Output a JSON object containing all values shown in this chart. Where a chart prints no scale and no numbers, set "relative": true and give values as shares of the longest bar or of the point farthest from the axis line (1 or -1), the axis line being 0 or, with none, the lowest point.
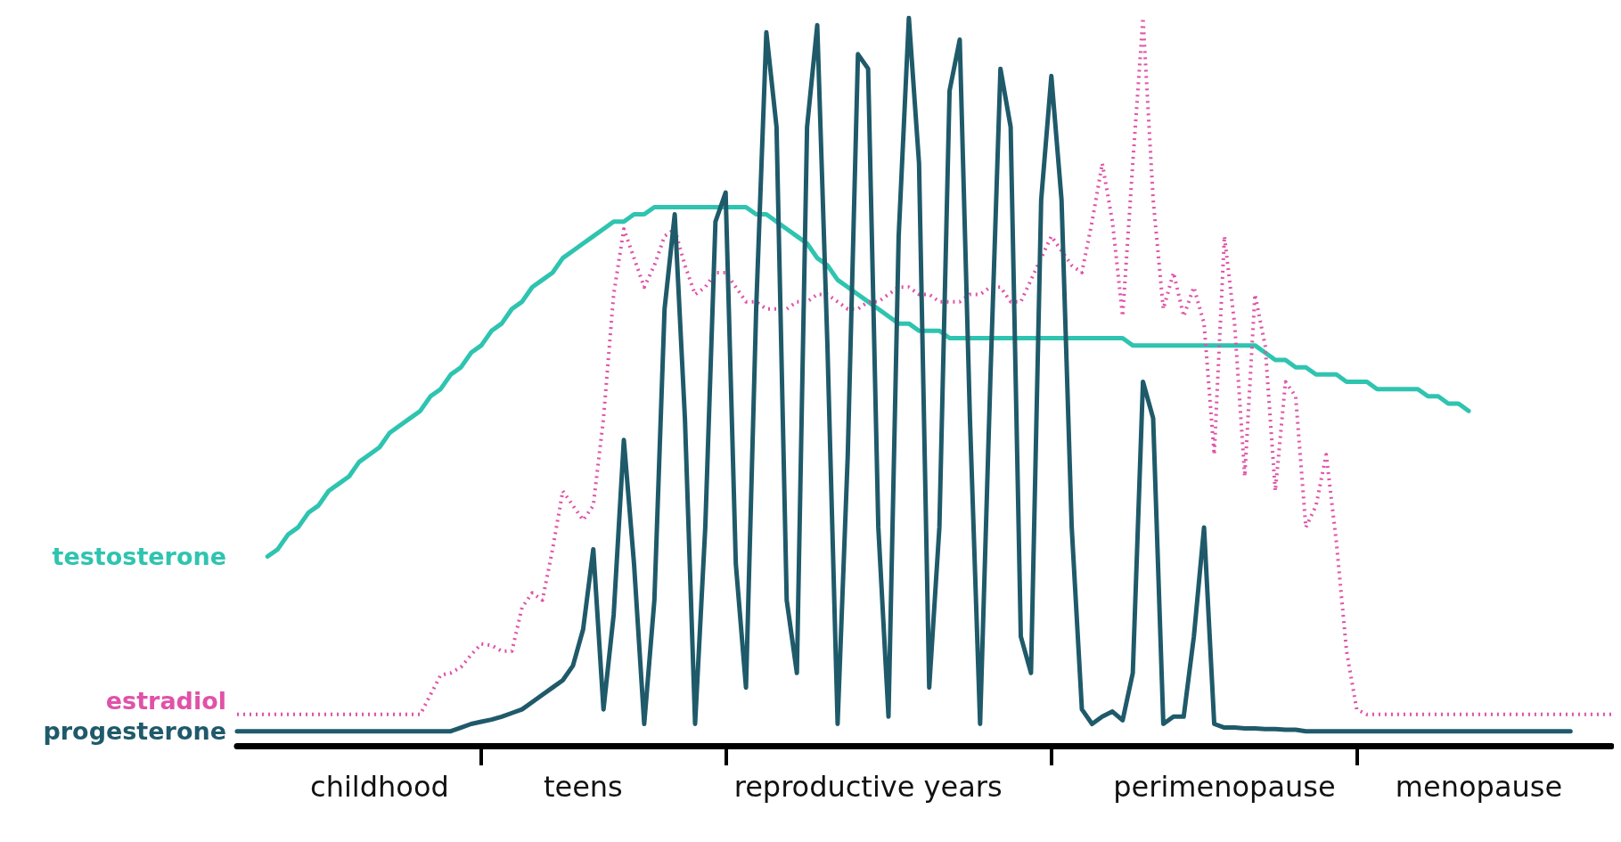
{
  "chart_data": {
    "type": "line",
    "relative": true,
    "categories": [
      null,
      null,
      null,
      null,
      null,
      null,
      null,
      null,
      null,
      null,
      null,
      null,
      null,
      null,
      "childhood",
      null,
      null,
      null,
      null,
      null,
      null,
      null,
      null,
      null,
      null,
      null,
      null,
      null,
      null,
      null,
      null,
      null,
      null,
      null,
      "teens",
      null,
      null,
      null,
      null,
      null,
      null,
      null,
      null,
      null,
      null,
      null,
      null,
      null,
      null,
      null,
      null,
      null,
      null,
      null,
      null,
      null,
      null,
      null,
      null,
      null,
      null,
      null,
      "reproductive years",
      null,
      null,
      null,
      null,
      null,
      null,
      null,
      null,
      null,
      null,
      null,
      null,
      null,
      null,
      null,
      null,
      null,
      null,
      null,
      null,
      null,
      null,
      null,
      null,
      null,
      null,
      null,
      null,
      null,
      null,
      null,
      null,
      null,
      null,
      "perimenopause",
      null,
      null,
      null,
      null,
      null,
      null,
      null,
      null,
      null,
      null,
      null,
      null,
      null,
      null,
      null,
      null,
      null,
      null,
      null,
      null,
      null,
      null,
      null,
      null,
      "menopause",
      null,
      null,
      null,
      null,
      null,
      null,
      null,
      null,
      null,
      null,
      null,
      null,
      null
    ],
    "marker": "none",
    "series": [
      {
        "name": "testosterone",
        "color": "#2ec4b0",
        "line_style": "solid",
        "values": [
          null,
          null,
          null,
          0.26,
          0.27,
          0.29,
          0.3,
          0.32,
          0.33,
          0.35,
          0.36,
          0.37,
          0.39,
          0.4,
          0.41,
          0.43,
          0.44,
          0.45,
          0.46,
          0.48,
          0.49,
          0.51,
          0.52,
          0.54,
          0.55,
          0.57,
          0.58,
          0.6,
          0.61,
          0.63,
          0.64,
          0.65,
          0.67,
          0.68,
          0.69,
          0.7,
          0.71,
          0.72,
          0.72,
          0.73,
          0.73,
          0.74,
          0.74,
          0.74,
          0.74,
          0.74,
          0.74,
          0.74,
          0.74,
          0.74,
          0.74,
          0.73,
          0.73,
          0.72,
          0.71,
          0.7,
          0.69,
          0.67,
          0.66,
          0.64,
          0.63,
          0.62,
          0.61,
          0.6,
          0.59,
          0.58,
          0.58,
          0.57,
          0.57,
          0.57,
          0.56,
          0.56,
          0.56,
          0.56,
          0.56,
          0.56,
          0.56,
          0.56,
          0.56,
          0.56,
          0.56,
          0.56,
          0.56,
          0.56,
          0.56,
          0.56,
          0.56,
          0.56,
          0.55,
          0.55,
          0.55,
          0.55,
          0.55,
          0.55,
          0.55,
          0.55,
          0.55,
          0.55,
          0.55,
          0.55,
          0.55,
          0.54,
          0.53,
          0.53,
          0.52,
          0.52,
          0.51,
          0.51,
          0.51,
          0.5,
          0.5,
          0.5,
          0.49,
          0.49,
          0.49,
          0.49,
          0.49,
          0.48,
          0.48,
          0.47,
          0.47,
          0.46,
          null,
          null,
          null,
          null,
          null,
          null,
          null,
          null,
          null,
          null,
          null,
          null,
          null,
          null
        ]
      },
      {
        "name": "estradiol",
        "color": "#e052a8",
        "line_style": "dotted",
        "values": [
          0.043,
          0.043,
          0.043,
          0.043,
          0.043,
          0.043,
          0.043,
          0.043,
          0.043,
          0.043,
          0.043,
          0.043,
          0.043,
          0.043,
          0.043,
          0.043,
          0.043,
          0.043,
          0.043,
          0.07,
          0.097,
          0.1,
          0.108,
          0.125,
          0.14,
          0.138,
          0.13,
          0.13,
          0.19,
          0.21,
          0.2,
          0.27,
          0.35,
          0.33,
          0.31,
          0.33,
          0.45,
          0.62,
          0.71,
          0.67,
          0.63,
          0.66,
          0.7,
          0.71,
          0.66,
          0.62,
          0.63,
          0.65,
          0.65,
          0.63,
          0.61,
          0.61,
          0.6,
          0.6,
          0.6,
          0.61,
          0.61,
          0.62,
          0.62,
          0.61,
          0.6,
          0.6,
          0.61,
          0.61,
          0.62,
          0.63,
          0.63,
          0.62,
          0.62,
          0.61,
          0.61,
          0.61,
          0.62,
          0.62,
          0.63,
          0.63,
          0.61,
          0.61,
          0.64,
          0.67,
          0.7,
          0.68,
          0.66,
          0.65,
          0.72,
          0.8,
          0.72,
          0.59,
          0.8,
          1.0,
          0.75,
          0.6,
          0.65,
          0.59,
          0.63,
          0.58,
          0.4,
          0.7,
          0.58,
          0.37,
          0.62,
          0.55,
          0.35,
          0.5,
          0.48,
          0.3,
          0.33,
          0.4,
          0.28,
          0.13,
          0.05,
          0.043,
          0.043,
          0.043,
          0.043,
          0.043,
          0.043,
          0.043,
          0.043,
          0.043,
          0.043,
          0.043,
          0.043,
          0.043,
          0.043,
          0.043,
          0.043,
          0.043,
          0.043,
          0.043,
          0.043,
          0.043,
          0.043,
          0.043,
          0.043,
          0.043
        ]
      },
      {
        "name": "progesterone",
        "color": "#1f5a6a",
        "line_style": "solid",
        "values": [
          0.02,
          0.02,
          0.02,
          0.02,
          0.02,
          0.02,
          0.02,
          0.02,
          0.02,
          0.02,
          0.02,
          0.02,
          0.02,
          0.02,
          0.02,
          0.02,
          0.02,
          0.02,
          0.02,
          0.02,
          0.02,
          0.02,
          0.025,
          0.03,
          0.033,
          0.036,
          0.04,
          0.045,
          0.05,
          0.06,
          0.07,
          0.08,
          0.09,
          0.11,
          0.16,
          0.27,
          0.05,
          0.18,
          0.42,
          0.25,
          0.03,
          0.2,
          0.6,
          0.73,
          0.45,
          0.03,
          0.3,
          0.72,
          0.76,
          0.25,
          0.08,
          0.6,
          0.98,
          0.85,
          0.2,
          0.1,
          0.85,
          0.99,
          0.55,
          0.03,
          0.4,
          0.95,
          0.93,
          0.3,
          0.04,
          0.7,
          1.0,
          0.8,
          0.08,
          0.3,
          0.9,
          0.97,
          0.45,
          0.03,
          0.5,
          0.93,
          0.85,
          0.15,
          0.1,
          0.75,
          0.92,
          0.75,
          0.3,
          0.05,
          0.03,
          0.04,
          0.047,
          0.035,
          0.1,
          0.5,
          0.45,
          0.03,
          0.04,
          0.04,
          0.15,
          0.3,
          0.03,
          0.025,
          0.025,
          0.024,
          0.024,
          0.023,
          0.023,
          0.022,
          0.022,
          0.02,
          0.02,
          0.02,
          0.02,
          0.02,
          0.02,
          0.02,
          0.02,
          0.02,
          0.02,
          0.02,
          0.02,
          0.02,
          0.02,
          0.02,
          0.02,
          0.02,
          0.02,
          0.02,
          0.02,
          0.02,
          0.02,
          0.02,
          0.02,
          0.02,
          0.02,
          0.02,
          null,
          null,
          null,
          null
        ]
      }
    ]
  }
}
